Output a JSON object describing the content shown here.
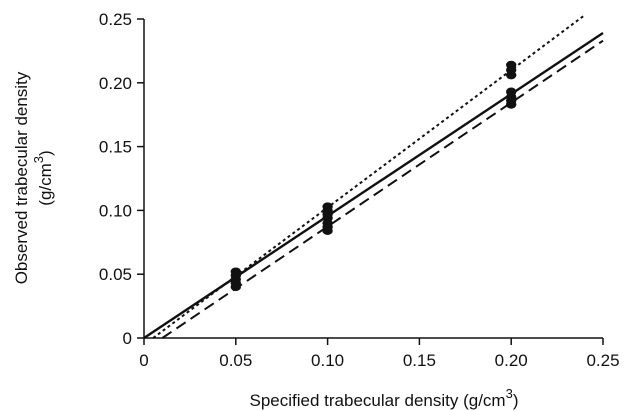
{
  "chart_data": {
    "type": "scatter",
    "xlabel": "Specified trabecular density (g/cm",
    "xlabel_sup": "3",
    "xlabel_end": ")",
    "ylabel_line1": "Observed trabecular density",
    "ylabel_line2": "(g/cm",
    "ylabel_sup": "3",
    "ylabel_end": ")",
    "xlim": [
      0,
      0.25
    ],
    "ylim": [
      0,
      0.25
    ],
    "x_ticks": [
      {
        "value": 0,
        "label": "0"
      },
      {
        "value": 0.05,
        "label": "0.05"
      },
      {
        "value": 0.1,
        "label": "0.10"
      },
      {
        "value": 0.15,
        "label": "0.15"
      },
      {
        "value": 0.2,
        "label": "0.20"
      },
      {
        "value": 0.25,
        "label": "0.25"
      }
    ],
    "y_ticks": [
      {
        "value": 0,
        "label": "0"
      },
      {
        "value": 0.05,
        "label": "0.05"
      },
      {
        "value": 0.1,
        "label": "0.10"
      },
      {
        "value": 0.15,
        "label": "0.15"
      },
      {
        "value": 0.2,
        "label": "0.20"
      },
      {
        "value": 0.25,
        "label": "0.25"
      }
    ],
    "grid": false,
    "points": [
      {
        "x": 0.05,
        "y": 0.052
      },
      {
        "x": 0.05,
        "y": 0.049
      },
      {
        "x": 0.05,
        "y": 0.046
      },
      {
        "x": 0.05,
        "y": 0.043
      },
      {
        "x": 0.05,
        "y": 0.04
      },
      {
        "x": 0.1,
        "y": 0.103
      },
      {
        "x": 0.1,
        "y": 0.1
      },
      {
        "x": 0.1,
        "y": 0.097
      },
      {
        "x": 0.1,
        "y": 0.094
      },
      {
        "x": 0.1,
        "y": 0.09
      },
      {
        "x": 0.1,
        "y": 0.087
      },
      {
        "x": 0.1,
        "y": 0.084
      },
      {
        "x": 0.2,
        "y": 0.214
      },
      {
        "x": 0.2,
        "y": 0.21
      },
      {
        "x": 0.2,
        "y": 0.206
      },
      {
        "x": 0.2,
        "y": 0.193
      },
      {
        "x": 0.2,
        "y": 0.189
      },
      {
        "x": 0.2,
        "y": 0.186
      },
      {
        "x": 0.2,
        "y": 0.183
      }
    ],
    "lines": [
      {
        "style": "solid",
        "points": [
          [
            0,
            0
          ],
          [
            0.25,
            0.239
          ]
        ]
      },
      {
        "style": "dotted",
        "points": [
          [
            0.005,
            0
          ],
          [
            0.24,
            0.253
          ]
        ]
      },
      {
        "style": "dashed",
        "points": [
          [
            0.01,
            0
          ],
          [
            0.25,
            0.233
          ]
        ]
      }
    ],
    "colors": {
      "ink": "#111111"
    }
  }
}
